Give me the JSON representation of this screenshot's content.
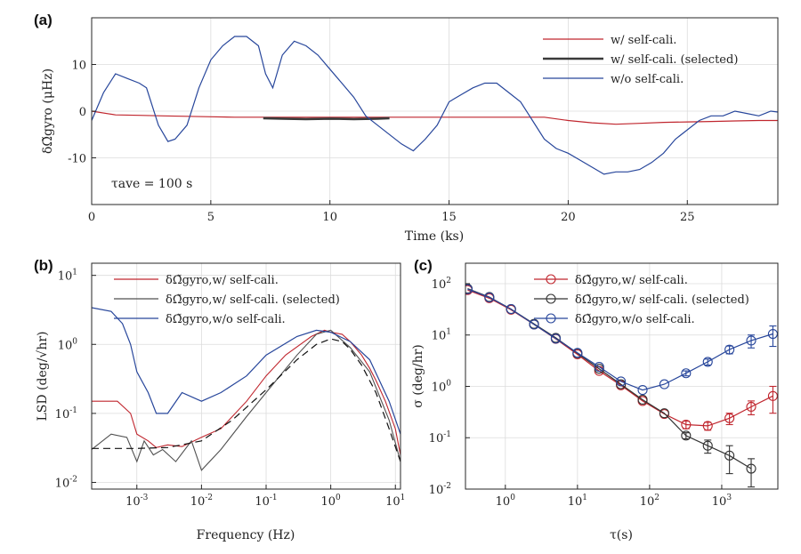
{
  "chart_data": [
    {
      "panel": "(a)",
      "type": "line",
      "xlabel": "Time (ks)",
      "ylabel": "δΩ̃gyro (μHz)",
      "xlim": [
        0,
        28.8
      ],
      "ylim": [
        -20,
        20
      ],
      "xticks": [
        0,
        5,
        10,
        15,
        20,
        25
      ],
      "yticks": [
        -10,
        0,
        10
      ],
      "grid": true,
      "legend_position": "top-right",
      "annotation": "τave = 100 s",
      "series": [
        {
          "name": "w/ self-cali.",
          "color": "#c0262e",
          "x": [
            0,
            1,
            2,
            3,
            4,
            5,
            6,
            7,
            8,
            9,
            10,
            11,
            12,
            13,
            14,
            15,
            16,
            17,
            18,
            19,
            20,
            21,
            22,
            23,
            24,
            25,
            26,
            27,
            28,
            28.8
          ],
          "y": [
            0,
            -0.8,
            -0.9,
            -1.0,
            -1.1,
            -1.2,
            -1.3,
            -1.3,
            -1.3,
            -1.3,
            -1.3,
            -1.3,
            -1.3,
            -1.3,
            -1.3,
            -1.3,
            -1.3,
            -1.3,
            -1.3,
            -1.3,
            -2.0,
            -2.5,
            -2.8,
            -2.6,
            -2.4,
            -2.3,
            -2.2,
            -2.1,
            -2.0,
            -2.0
          ]
        },
        {
          "name": "w/ self-cali. (selected)",
          "color": "#3a3a3a",
          "x": [
            7.2,
            8,
            9,
            10,
            11,
            12,
            12.5
          ],
          "y": [
            -1.5,
            -1.6,
            -1.7,
            -1.6,
            -1.7,
            -1.6,
            -1.5
          ]
        },
        {
          "name": "w/o self-cali.",
          "color": "#27469b",
          "x": [
            0,
            0.5,
            1,
            1.5,
            2,
            2.3,
            2.8,
            3.2,
            3.5,
            4,
            4.5,
            5,
            5.5,
            6,
            6.5,
            7,
            7.3,
            7.6,
            8,
            8.5,
            9,
            9.5,
            10,
            10.5,
            11,
            11.5,
            12,
            12.5,
            13,
            13.5,
            14,
            14.5,
            15,
            15.5,
            16,
            16.5,
            17,
            17.5,
            18,
            18.5,
            19,
            19.5,
            20,
            20.5,
            21,
            21.5,
            22,
            22.5,
            23,
            23.5,
            24,
            24.5,
            25,
            25.5,
            26,
            26.5,
            27,
            27.5,
            28,
            28.5,
            28.8
          ],
          "y": [
            -2,
            4,
            8,
            7,
            6,
            5,
            -3,
            -6.5,
            -6,
            -3,
            5,
            11,
            14,
            16,
            16,
            14,
            8,
            5,
            12,
            15,
            14,
            12,
            9,
            6,
            3,
            -1,
            -3,
            -5,
            -7,
            -8.5,
            -6,
            -3,
            2,
            3.5,
            5,
            6,
            6,
            4,
            2,
            -2,
            -6,
            -8,
            -9,
            -10.5,
            -12,
            -13.5,
            -13,
            -13,
            -12.5,
            -11,
            -9,
            -6,
            -4,
            -2,
            -1,
            -1,
            0,
            -0.5,
            -1,
            0,
            -0.2
          ]
        }
      ]
    },
    {
      "panel": "(b)",
      "type": "line",
      "xlabel": "Frequency (Hz)",
      "ylabel": "LSD (deg/√hr)",
      "xscale": "log",
      "yscale": "log",
      "xlim": [
        0.0002,
        12
      ],
      "ylim": [
        0.008,
        15
      ],
      "xticks": [
        0.001,
        0.01,
        0.1,
        1,
        10
      ],
      "xtick_labels": [
        "10",
        "10",
        "10",
        "10",
        "10"
      ],
      "xtick_exponents": [
        "-3",
        "-2",
        "-1",
        "0",
        "1"
      ],
      "yticks": [
        0.01,
        0.1,
        1,
        10
      ],
      "ytick_labels": [
        "10",
        "10",
        "10",
        "10"
      ],
      "ytick_exponents": [
        "-2",
        "-1",
        "0",
        "1"
      ],
      "grid": true,
      "legend_position": "top-left",
      "series": [
        {
          "name": "δΩ̃gyro,w/ self-cali.",
          "color": "#c0262e",
          "x": [
            0.0002,
            0.0005,
            0.0008,
            0.001,
            0.0015,
            0.002,
            0.003,
            0.005,
            0.01,
            0.02,
            0.05,
            0.1,
            0.2,
            0.5,
            0.8,
            1,
            1.5,
            2,
            3,
            4,
            5,
            7,
            10,
            12
          ],
          "y": [
            0.15,
            0.15,
            0.1,
            0.05,
            0.04,
            0.032,
            0.035,
            0.033,
            0.045,
            0.06,
            0.15,
            0.35,
            0.7,
            1.3,
            1.6,
            1.5,
            1.4,
            1.1,
            0.7,
            0.45,
            0.3,
            0.15,
            0.06,
            0.025
          ]
        },
        {
          "name": "δΩ̃gyro,w/ self-cali. (selected)",
          "color": "#505050",
          "x": [
            0.0002,
            0.0004,
            0.0007,
            0.001,
            0.0013,
            0.0018,
            0.0025,
            0.004,
            0.007,
            0.01,
            0.02,
            0.05,
            0.1,
            0.3,
            0.6,
            1,
            2,
            4,
            8,
            12
          ],
          "y": [
            0.03,
            0.05,
            0.045,
            0.02,
            0.04,
            0.025,
            0.03,
            0.02,
            0.04,
            0.015,
            0.03,
            0.09,
            0.2,
            0.7,
            1.4,
            1.6,
            0.9,
            0.4,
            0.08,
            0.02
          ]
        },
        {
          "name": "δΩ̃gyro,w/o self-cali.",
          "color": "#27469b",
          "x": [
            0.0002,
            0.0004,
            0.0006,
            0.0008,
            0.001,
            0.0015,
            0.002,
            0.003,
            0.005,
            0.01,
            0.02,
            0.05,
            0.1,
            0.3,
            0.6,
            1,
            2,
            4,
            8,
            12
          ],
          "y": [
            3.4,
            3.0,
            2.0,
            1.0,
            0.4,
            0.2,
            0.1,
            0.1,
            0.2,
            0.15,
            0.2,
            0.35,
            0.7,
            1.3,
            1.6,
            1.5,
            1.1,
            0.6,
            0.15,
            0.05
          ]
        },
        {
          "name": "",
          "style": "dashed",
          "color": "#111111",
          "x": [
            0.0002,
            0.001,
            0.003,
            0.01,
            0.03,
            0.1,
            0.3,
            0.6,
            1,
            1.5,
            2,
            3,
            5,
            8,
            12
          ],
          "y": [
            0.031,
            0.031,
            0.032,
            0.04,
            0.08,
            0.22,
            0.6,
            1.0,
            1.2,
            1.1,
            0.85,
            0.5,
            0.2,
            0.06,
            0.02
          ]
        }
      ]
    },
    {
      "panel": "(c)",
      "type": "line",
      "xlabel": "τ(s)",
      "ylabel": "σ (deg/hr)",
      "xscale": "log",
      "yscale": "log",
      "xlim": [
        0.28,
        6000
      ],
      "ylim": [
        0.01,
        250
      ],
      "xticks": [
        1,
        10,
        100,
        1000
      ],
      "xtick_labels": [
        "10",
        "10",
        "10",
        "10"
      ],
      "xtick_exponents": [
        "0",
        "1",
        "2",
        "3"
      ],
      "yticks": [
        0.01,
        0.1,
        1,
        10,
        100
      ],
      "ytick_labels": [
        "10",
        "10",
        "10",
        "10",
        "10"
      ],
      "ytick_exponents": [
        "-2",
        "-1",
        "0",
        "1",
        "2"
      ],
      "grid": true,
      "legend_position": "top-right",
      "marker": "circle",
      "series": [
        {
          "name": "δΩ̃gyro,w/ self-cali.",
          "color": "#c0262e",
          "x": [
            0.3,
            0.6,
            1.2,
            2.5,
            5,
            10,
            20,
            40,
            80,
            160,
            320,
            640,
            1280,
            2560,
            5120
          ],
          "y": [
            75,
            52,
            31,
            16,
            8.4,
            4.2,
            2.0,
            1.05,
            0.52,
            0.29,
            0.18,
            0.17,
            0.24,
            0.4,
            0.65
          ],
          "err": [
            0,
            0,
            0,
            0,
            0,
            0,
            0,
            0,
            0,
            0,
            0.03,
            0.03,
            0.06,
            0.12,
            0.35
          ]
        },
        {
          "name": "δΩ̃gyro,w/ self-cali. (selected)",
          "color": "#333333",
          "x": [
            0.3,
            0.6,
            1.2,
            2.5,
            5,
            10,
            20,
            40,
            80,
            160,
            320,
            640,
            1280,
            2560
          ],
          "y": [
            80,
            55,
            32,
            16.5,
            8.8,
            4.4,
            2.2,
            1.1,
            0.55,
            0.3,
            0.11,
            0.07,
            0.045,
            0.025
          ],
          "err": [
            0,
            0,
            0,
            0,
            0,
            0,
            0,
            0,
            0,
            0,
            0.015,
            0.02,
            0.025,
            0.014
          ]
        },
        {
          "name": "δΩ̃gyro,w/o self-cali.",
          "color": "#27469b",
          "x": [
            0.3,
            0.6,
            1.2,
            2.5,
            5,
            10,
            20,
            40,
            80,
            160,
            320,
            640,
            1280,
            2560,
            5120
          ],
          "y": [
            78,
            54,
            32,
            16,
            8.5,
            4.5,
            2.4,
            1.25,
            0.85,
            1.1,
            1.8,
            3.0,
            5.2,
            7.8,
            10.5
          ],
          "err": [
            0,
            0,
            0,
            0,
            0,
            0,
            0,
            0,
            0,
            0,
            0.2,
            0.4,
            0.9,
            2.2,
            4.5
          ]
        }
      ]
    }
  ]
}
